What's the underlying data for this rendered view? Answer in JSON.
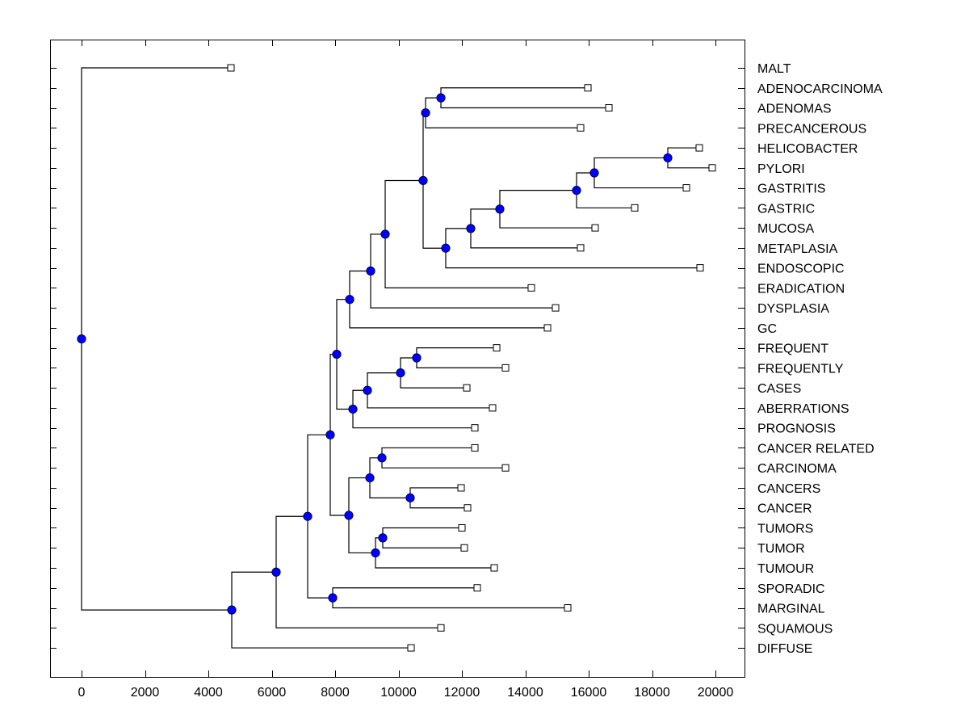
{
  "chart_data": {
    "type": "dendrogram",
    "title": "",
    "xlabel": "",
    "ylabel": "",
    "xlim": [
      -1000,
      21000
    ],
    "x_ticks": [
      0,
      2000,
      4000,
      6000,
      8000,
      10000,
      12000,
      14000,
      16000,
      18000,
      20000
    ],
    "x_tick_labels": [
      "0",
      "2000",
      "4000",
      "6000",
      "8000",
      "10000",
      "12000",
      "14000",
      "16000",
      "18000",
      "20000"
    ],
    "grid": false,
    "leaf_marker_color": "#ffffff",
    "node_marker_color": "#0000ff",
    "leaves": [
      {
        "id": "MALT",
        "label": "MALT",
        "value": 4713
      },
      {
        "id": "ADENOCARCINOMA",
        "label": "ADENOCARCINOMA",
        "value": 15975
      },
      {
        "id": "ADENOMAS",
        "label": "ADENOMAS",
        "value": 16637
      },
      {
        "id": "PRECANCEROUS",
        "label": "PRECANCEROUS",
        "value": 15745
      },
      {
        "id": "HELICOBACTER",
        "label": "HELICOBACTER",
        "value": 19490
      },
      {
        "id": "PYLORI",
        "label": "PYLORI",
        "value": 19898
      },
      {
        "id": "GASTRITIS",
        "label": "GASTRITIS",
        "value": 19083
      },
      {
        "id": "GASTRIC",
        "label": "GASTRIC",
        "value": 17452
      },
      {
        "id": "MUCOSA",
        "label": "MUCOSA",
        "value": 16204
      },
      {
        "id": "METAPLASIA",
        "label": "METAPLASIA",
        "value": 15745
      },
      {
        "id": "ENDOSCOPIC",
        "label": "ENDOSCOPIC",
        "value": 19516
      },
      {
        "id": "ERADICATION",
        "label": "ERADICATION",
        "value": 14191
      },
      {
        "id": "DYSPLASIA",
        "label": "DYSPLASIA",
        "value": 14955
      },
      {
        "id": "GC",
        "label": "GC",
        "value": 14701
      },
      {
        "id": "FREQUENT",
        "label": "FREQUENT",
        "value": 13096
      },
      {
        "id": "FREQUENTLY",
        "label": "FREQUENTLY",
        "value": 13376
      },
      {
        "id": "CASES",
        "label": "CASES",
        "value": 12153
      },
      {
        "id": "ABERRATIONS",
        "label": "ABERRATIONS",
        "value": 12968
      },
      {
        "id": "PROGNOSIS",
        "label": "PROGNOSIS",
        "value": 12408
      },
      {
        "id": "CANCER_RELATED",
        "label": "CANCER RELATED",
        "value": 12408
      },
      {
        "id": "CARCINOMA",
        "label": "CARCINOMA",
        "value": 13376
      },
      {
        "id": "CANCERS",
        "label": "CANCERS",
        "value": 11975
      },
      {
        "id": "CANCER",
        "label": "CANCER",
        "value": 12178
      },
      {
        "id": "TUMORS",
        "label": "TUMORS",
        "value": 12000
      },
      {
        "id": "TUMOR",
        "label": "TUMOR",
        "value": 12076
      },
      {
        "id": "TUMOUR",
        "label": "TUMOUR",
        "value": 13019
      },
      {
        "id": "SPORADIC",
        "label": "SPORADIC",
        "value": 12484
      },
      {
        "id": "MARGINAL",
        "label": "MARGINAL",
        "value": 15338
      },
      {
        "id": "SQUAMOUS",
        "label": "SQUAMOUS",
        "value": 11338
      },
      {
        "id": "DIFFUSE",
        "label": "DIFFUSE",
        "value": 10395
      }
    ],
    "nodes": [
      {
        "id": "n_adeno",
        "value": 11338,
        "children": [
          "ADENOCARCINOMA",
          "ADENOMAS"
        ]
      },
      {
        "id": "n_adeno2",
        "value": 10854,
        "children": [
          "n_adeno",
          "PRECANCEROUS"
        ]
      },
      {
        "id": "n_hp",
        "value": 18497,
        "children": [
          "HELICOBACTER",
          "PYLORI"
        ]
      },
      {
        "id": "n_hpg",
        "value": 16178,
        "children": [
          "n_hp",
          "GASTRITIS"
        ]
      },
      {
        "id": "n_hpgg",
        "value": 15618,
        "children": [
          "n_hpg",
          "GASTRIC"
        ]
      },
      {
        "id": "n_mucosa",
        "value": 13197,
        "children": [
          "n_hpgg",
          "MUCOSA"
        ]
      },
      {
        "id": "n_meta",
        "value": 12280,
        "children": [
          "n_mucosa",
          "METAPLASIA"
        ]
      },
      {
        "id": "n_endo",
        "value": 11490,
        "children": [
          "n_meta",
          "ENDOSCOPIC"
        ]
      },
      {
        "id": "n_top",
        "value": 10777,
        "children": [
          "n_adeno2",
          "n_endo"
        ]
      },
      {
        "id": "n_erad",
        "value": 9580,
        "children": [
          "n_top",
          "ERADICATION"
        ]
      },
      {
        "id": "n_dysp",
        "value": 9121,
        "children": [
          "n_erad",
          "DYSPLASIA"
        ]
      },
      {
        "id": "n_gc",
        "value": 8459,
        "children": [
          "n_dysp",
          "GC"
        ]
      },
      {
        "id": "n_freq",
        "value": 10573,
        "children": [
          "FREQUENT",
          "FREQUENTLY"
        ]
      },
      {
        "id": "n_cases",
        "value": 10064,
        "children": [
          "n_freq",
          "CASES"
        ]
      },
      {
        "id": "n_aber",
        "value": 9019,
        "children": [
          "n_cases",
          "ABERRATIONS"
        ]
      },
      {
        "id": "n_prog",
        "value": 8561,
        "children": [
          "n_aber",
          "PROGNOSIS"
        ]
      },
      {
        "id": "n_upper",
        "value": 8051,
        "children": [
          "n_gc",
          "n_prog"
        ]
      },
      {
        "id": "n_cr",
        "value": 9478,
        "children": [
          "CANCER_RELATED",
          "CARCINOMA"
        ]
      },
      {
        "id": "n_cancer",
        "value": 10369,
        "children": [
          "CANCERS",
          "CANCER"
        ]
      },
      {
        "id": "n_cc",
        "value": 9096,
        "children": [
          "n_cr",
          "n_cancer"
        ]
      },
      {
        "id": "n_tum",
        "value": 9503,
        "children": [
          "TUMORS",
          "TUMOR"
        ]
      },
      {
        "id": "n_tum2",
        "value": 9274,
        "children": [
          "n_tum",
          "TUMOUR"
        ]
      },
      {
        "id": "n_lower",
        "value": 8433,
        "children": [
          "n_cc",
          "n_tum2"
        ]
      },
      {
        "id": "n_mid",
        "value": 7847,
        "children": [
          "n_upper",
          "n_lower"
        ]
      },
      {
        "id": "n_spor",
        "value": 7924,
        "children": [
          "SPORADIC",
          "MARGINAL"
        ]
      },
      {
        "id": "n_a",
        "value": 7134,
        "children": [
          "n_mid",
          "n_spor"
        ]
      },
      {
        "id": "n_b",
        "value": 6140,
        "children": [
          "n_a",
          "SQUAMOUS"
        ]
      },
      {
        "id": "n_c",
        "value": 4739,
        "children": [
          "n_b",
          "DIFFUSE"
        ]
      },
      {
        "id": "root",
        "value": 0,
        "children": [
          "MALT",
          "n_c"
        ]
      }
    ]
  }
}
